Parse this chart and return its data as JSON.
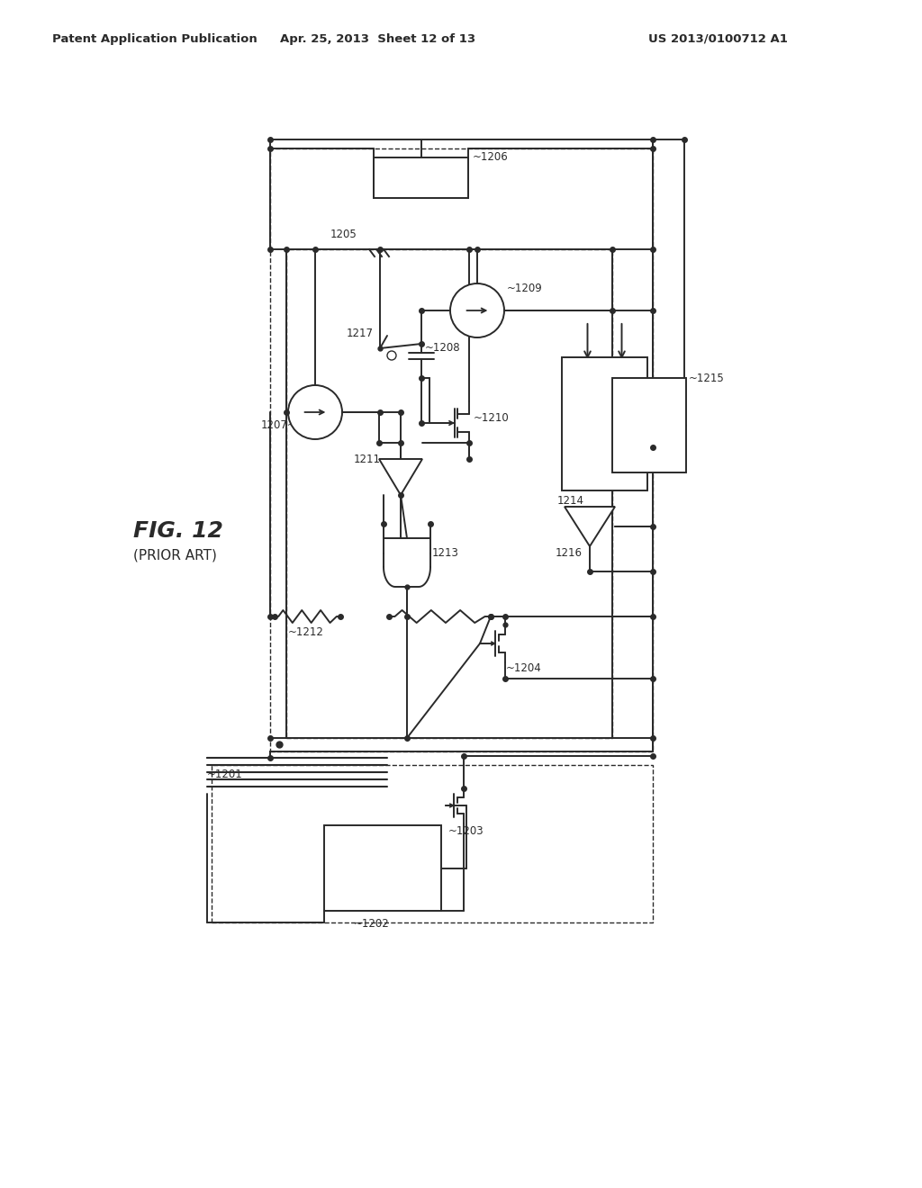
{
  "header_left": "Patent Application Publication",
  "header_mid": "Apr. 25, 2013  Sheet 12 of 13",
  "header_right": "US 2013/0100712 A1",
  "fig_label": "FIG. 12",
  "fig_sublabel": "(PRIOR ART)",
  "bg": "#ffffff",
  "lc": "#2a2a2a"
}
